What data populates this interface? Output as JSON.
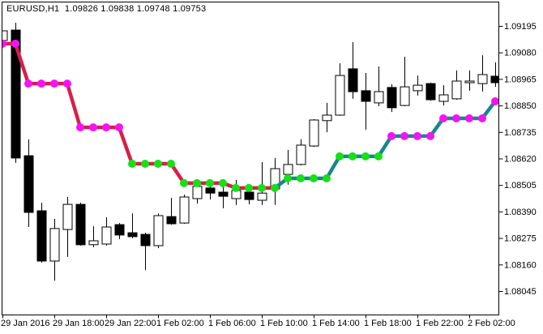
{
  "title": "EURUSD,H1  1.09826 1.09838 1.09748 1.09753",
  "colors": {
    "background": "#ffffff",
    "axis": "#000000",
    "bull_fill": "#ffffff",
    "bear_fill": "#000000",
    "candle_outline": "#000000",
    "line_bearish": "#d6204a",
    "line_bullish": "#17888a",
    "dot_magenta": "#f513f5",
    "dot_lime": "#16e016"
  },
  "chart_data": {
    "type": "candlestick",
    "symbol": "EURUSD",
    "timeframe": "H1",
    "title_ohlc": {
      "open": "1.09826",
      "high": "1.09838",
      "low": "1.09748",
      "close": "1.09753"
    },
    "y_axis_ticks": [
      "1.09195",
      "1.09080",
      "1.08965",
      "1.08850",
      "1.08735",
      "1.08620",
      "1.08505",
      "1.08390",
      "1.08275",
      "1.08160",
      "1.08045"
    ],
    "x_axis_ticks": [
      "29 Jan 2016",
      "29 Jan 18:00",
      "29 Jan 22:00",
      "1 Feb 02:00",
      "1 Feb 06:00",
      "1 Feb 10:00",
      "1 Feb 14:00",
      "1 Feb 18:00",
      "1 Feb 22:00",
      "2 Feb 02:00"
    ],
    "y_range": [
      1.08045,
      1.09195
    ],
    "grid": false,
    "legend": false,
    "candles_ohlc": [
      [
        1.09132,
        1.09174,
        1.09132,
        1.09174
      ],
      [
        1.09177,
        1.09209,
        1.08601,
        1.08622
      ],
      [
        1.08632,
        1.08703,
        1.08323,
        1.08386
      ],
      [
        1.08393,
        1.08428,
        1.08168,
        1.08175
      ],
      [
        1.08175,
        1.08358,
        1.0809,
        1.08316
      ],
      [
        1.08312,
        1.08453,
        1.08193,
        1.08421
      ],
      [
        1.08421,
        1.08428,
        1.08242,
        1.08246
      ],
      [
        1.08246,
        1.08326,
        1.08235,
        1.08263
      ],
      [
        1.08249,
        1.08365,
        1.08242,
        1.08323
      ],
      [
        1.08333,
        1.0834,
        1.0827,
        1.08288
      ],
      [
        1.08298,
        1.08382,
        1.08274,
        1.08281
      ],
      [
        1.08291,
        1.08298,
        1.08136,
        1.08242
      ],
      [
        1.08242,
        1.08382,
        1.08231,
        1.08372
      ],
      [
        1.08368,
        1.08449,
        1.08333,
        1.08337
      ],
      [
        1.0834,
        1.08463,
        1.08337,
        1.08453
      ],
      [
        1.08446,
        1.08506,
        1.08424,
        1.08499
      ],
      [
        1.08492,
        1.08499,
        1.08442,
        1.0847
      ],
      [
        1.08474,
        1.08516,
        1.08404,
        1.08456
      ],
      [
        1.08446,
        1.08527,
        1.08418,
        1.08481
      ],
      [
        1.08474,
        1.08509,
        1.08421,
        1.08442
      ],
      [
        1.08439,
        1.08604,
        1.08418,
        1.0847
      ],
      [
        1.08488,
        1.08622,
        1.08418,
        1.08576
      ],
      [
        1.08551,
        1.08657,
        1.08506,
        1.08594
      ],
      [
        1.08594,
        1.08703,
        1.0859,
        1.08678
      ],
      [
        1.08674,
        1.08791,
        1.08671,
        1.08787
      ],
      [
        1.08784,
        1.08861,
        1.08734,
        1.08808
      ],
      [
        1.08808,
        1.09033,
        1.08805,
        1.0898
      ],
      [
        1.09009,
        1.09125,
        1.08879,
        1.0891
      ],
      [
        1.08914,
        1.08991,
        1.08745,
        1.08868
      ],
      [
        1.08861,
        1.09019,
        1.08847,
        1.0891
      ],
      [
        1.08928,
        1.08942,
        1.08822,
        1.0884
      ],
      [
        1.0885,
        1.09061,
        1.08847,
        1.08931
      ],
      [
        1.08914,
        1.0898,
        1.08893,
        1.08938
      ],
      [
        1.08945,
        1.08949,
        1.08871,
        1.08875
      ],
      [
        1.08868,
        1.08938,
        1.0885,
        1.08896
      ],
      [
        1.08879,
        1.09002,
        1.08875,
        1.08956
      ],
      [
        1.08949,
        1.09002,
        1.08914,
        1.08956
      ],
      [
        1.08945,
        1.09068,
        1.0891,
        1.08984
      ],
      [
        1.08977,
        1.09037,
        1.08931,
        1.08949
      ]
    ],
    "indicator": {
      "name": "stepped trend line",
      "values": [
        1.09118,
        1.09118,
        1.08945,
        1.08945,
        1.08945,
        1.08945,
        1.08755,
        1.08755,
        1.08755,
        1.08755,
        1.08597,
        1.08597,
        1.08597,
        1.08597,
        1.08513,
        1.08513,
        1.08513,
        1.08513,
        1.08492,
        1.08492,
        1.08492,
        1.08492,
        1.08534,
        1.08534,
        1.08534,
        1.08534,
        1.08629,
        1.08629,
        1.08629,
        1.08629,
        1.08717,
        1.08717,
        1.08717,
        1.08717,
        1.08794,
        1.08794,
        1.08794,
        1.08794,
        1.08868
      ],
      "dot_pattern": "mmmmmmmmmmggggggggggggggggggggmmmmmmmmm",
      "line_switch_point": 21
    }
  }
}
